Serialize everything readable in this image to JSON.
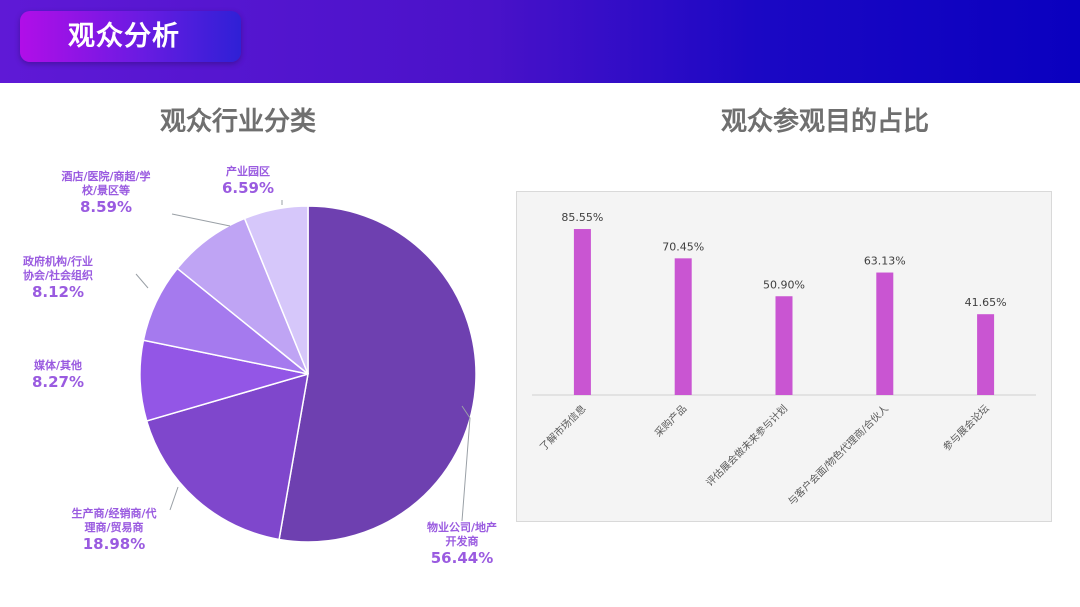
{
  "header": {
    "title": "观众分析"
  },
  "colors": {
    "pie": [
      "#6e40b0",
      "#7f47cc",
      "#9356e6",
      "#a57aee",
      "#bfa4f4",
      "#d6c7fa"
    ],
    "bar": "#c955d2",
    "label": "#9a5be0"
  },
  "chart_data": [
    {
      "type": "pie",
      "title": "观众行业分类",
      "slices": [
        {
          "label": "物业公司/地产开发商",
          "label_lines": [
            "物业公司/地产",
            "开发商"
          ],
          "value": 56.44,
          "value_label": "56.44%"
        },
        {
          "label": "生产商/经销商/代理商/贸易商",
          "label_lines": [
            "生产商/经销商/代",
            "理商/贸易商"
          ],
          "value": 18.98,
          "value_label": "18.98%"
        },
        {
          "label": "媒体/其他",
          "label_lines": [
            "媒体/其他"
          ],
          "value": 8.27,
          "value_label": "8.27%"
        },
        {
          "label": "政府机构/行业协会/社会组织",
          "label_lines": [
            "政府机构/行业",
            "协会/社会组织"
          ],
          "value": 8.12,
          "value_label": "8.12%"
        },
        {
          "label": "酒店/医院/商超/学校/景区等",
          "label_lines": [
            "酒店/医院/商超/学",
            "校/景区等"
          ],
          "value": 8.59,
          "value_label": "8.59%"
        },
        {
          "label": "产业园区",
          "label_lines": [
            "产业园区"
          ],
          "value": 6.59,
          "value_label": "6.59%"
        }
      ]
    },
    {
      "type": "bar",
      "title": "观众参观目的占比",
      "categories": [
        "了解市场信息",
        "采购产品",
        "评估展会做未来参与计划",
        "与客户会面/物色代理商/合伙人",
        "参与展会论坛"
      ],
      "values": [
        85.55,
        70.45,
        50.9,
        63.13,
        41.65
      ],
      "value_labels": [
        "85.55%",
        "70.45%",
        "50.90%",
        "63.13%",
        "41.65%"
      ],
      "unit": "%",
      "ylim": [
        0,
        100
      ],
      "grid": false,
      "legend": "none"
    }
  ]
}
